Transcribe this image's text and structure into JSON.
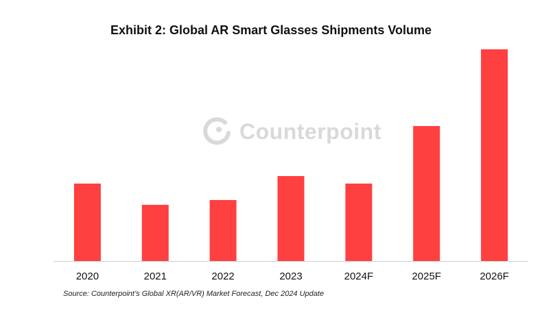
{
  "title": "Exhibit 2: Global AR Smart Glasses Shipments Volume",
  "source": "Source: Counterpoint’s Global XR(AR/VR) Market Forecast, Dec 2024 Update",
  "watermark": "Counterpoint",
  "colors": {
    "bar": "#ff4040",
    "axis": "#cccccc",
    "watermark": "#7a7a7a"
  },
  "chart_data": {
    "type": "bar",
    "title": "Exhibit 2: Global AR Smart Glasses Shipments Volume",
    "categories": [
      "2020",
      "2021",
      "2022",
      "2023",
      "2024F",
      "2025F",
      "2026F"
    ],
    "values": [
      113,
      82,
      89,
      124,
      113,
      197,
      309
    ],
    "xlabel": "",
    "ylabel": "",
    "ylim": [
      0,
      309
    ],
    "grid": false,
    "y_axis_shown": false,
    "legend": "none"
  }
}
